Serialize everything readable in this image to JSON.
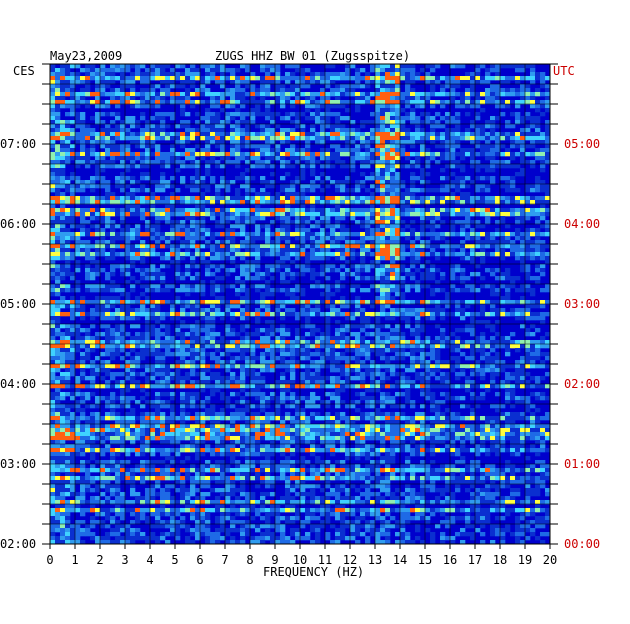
{
  "header": {
    "date": "May23,2009",
    "station": "ZUGS HHZ BW 01 (Zugsspitze)",
    "left_timezone": "CES",
    "right_timezone": "UTC"
  },
  "chart_data": {
    "type": "heatmap",
    "title": "ZUGS HHZ BW 01 (Zugsspitze)",
    "date": "May23,2009",
    "xlabel": "FREQUENCY (HZ)",
    "xlim": [
      0,
      20
    ],
    "x_ticks": [
      "0",
      "1",
      "2",
      "3",
      "4",
      "5",
      "6",
      "7",
      "8",
      "9",
      "10",
      "11",
      "12",
      "13",
      "14",
      "15",
      "16",
      "17",
      "18",
      "19",
      "20"
    ],
    "y_axis_left": {
      "label": "CES",
      "ticks": [
        "07:00",
        "06:00",
        "05:00",
        "04:00",
        "03:00",
        "02:00"
      ],
      "tick_hours": [
        7,
        6,
        5,
        4,
        3,
        2
      ]
    },
    "y_axis_right": {
      "label": "UTC",
      "ticks": [
        "05:00",
        "04:00",
        "03:00",
        "02:00",
        "01:00",
        "00:00"
      ],
      "tick_hours": [
        5,
        4,
        3,
        2,
        1,
        0
      ]
    },
    "time_range_ces_hours": [
      2,
      8
    ],
    "grid": true,
    "colors": {
      "background": "#0000cc",
      "low": "#0a1fbf",
      "mid": "#1e6ae6",
      "high_cyan": "#3fd2ff",
      "peak_yellow": "#ffff40",
      "peak_red": "#ff2000",
      "utc_label_color": "#cc0000",
      "grid": "#000000"
    },
    "notable_features": [
      {
        "description": "persistent energy band",
        "freq_hz": [
          13.0,
          14.0
        ]
      },
      {
        "description": "low-frequency energy",
        "freq_hz": [
          0.0,
          1.2
        ]
      }
    ]
  }
}
